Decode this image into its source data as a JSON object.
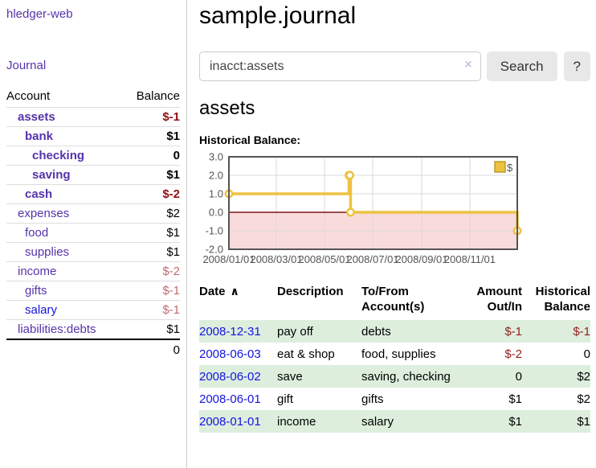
{
  "app": {
    "title": "hledger-web"
  },
  "sidebar": {
    "journal_label": "Journal",
    "accounts_table": {
      "headers": {
        "account": "Account",
        "balance": "Balance"
      },
      "rows": [
        {
          "name": "assets",
          "indent": 1,
          "bold": true,
          "balance": "$-1",
          "neg": "strong"
        },
        {
          "name": "bank",
          "indent": 2,
          "bold": true,
          "balance": "$1"
        },
        {
          "name": "checking",
          "indent": 3,
          "bold": true,
          "balance": "0"
        },
        {
          "name": "saving",
          "indent": 3,
          "bold": true,
          "balance": "$1"
        },
        {
          "name": "cash",
          "indent": 2,
          "bold": true,
          "balance": "$-2",
          "neg": "strong"
        },
        {
          "name": "expenses",
          "indent": 1,
          "balance": "$2"
        },
        {
          "name": "food",
          "indent": 2,
          "balance": "$1"
        },
        {
          "name": "supplies",
          "indent": 2,
          "balance": "$1"
        },
        {
          "name": "income",
          "indent": 1,
          "balance": "$-2",
          "neg": "soft"
        },
        {
          "name": "gifts",
          "indent": 2,
          "balance": "$-1",
          "neg": "soft"
        },
        {
          "name": "salary",
          "indent": 2,
          "blue": true,
          "balance": "$-1",
          "neg": "soft"
        },
        {
          "name": "liabilities:debts",
          "indent": 1,
          "balance": "$1"
        }
      ],
      "total": "0"
    }
  },
  "main": {
    "title": "sample.journal",
    "search": {
      "value": "inacct:assets",
      "clear_icon": "×",
      "button_label": "Search",
      "help_label": "?"
    },
    "account_heading": "assets",
    "chart_label": "Historical Balance:"
  },
  "chart_data": {
    "type": "line",
    "title": "Historical Balance",
    "series": [
      {
        "name": "$",
        "step": true,
        "points": [
          [
            "2008-01-01",
            1
          ],
          [
            "2008-06-01",
            2
          ],
          [
            "2008-06-02",
            2
          ],
          [
            "2008-06-03",
            0
          ],
          [
            "2008-12-31",
            -1
          ]
        ]
      }
    ],
    "x_range": [
      "2008-01-01",
      "2008-12-31"
    ],
    "x_ticks": [
      "2008/01/01",
      "2008/03/01",
      "2008/05/01",
      "2008/07/01",
      "2008/09/01",
      "2008/11/01"
    ],
    "y_ticks": [
      3.0,
      2.0,
      1.0,
      0.0,
      -1.0,
      -2.0
    ],
    "ylim": [
      -2,
      3
    ],
    "negative_fill": true,
    "grid": true,
    "legend": {
      "position": "top-right",
      "label": "$"
    },
    "colors": {
      "line": "#edc240",
      "legend_border": "#bb9a2a",
      "negative_region": "#fadbdb",
      "zero_line": "#7a1818",
      "grid": "#d9d9d9",
      "border": "#545454",
      "axis_text": "#545454"
    }
  },
  "register": {
    "headers": {
      "date": "Date",
      "sort_indicator": "∧",
      "description": "Description",
      "accounts_l1": "To/From",
      "accounts_l2": "Account(s)",
      "amount_l1": "Amount",
      "amount_l2": "Out/In",
      "balance_l1": "Historical",
      "balance_l2": "Balance"
    },
    "rows": [
      {
        "date": "2008-12-31",
        "description": "pay off",
        "accounts": "debts",
        "amount": "$-1",
        "amount_neg": true,
        "balance": "$-1",
        "balance_neg": true
      },
      {
        "date": "2008-06-03",
        "description": "eat & shop",
        "accounts": "food, supplies",
        "amount": "$-2",
        "amount_neg": true,
        "balance": "0",
        "balance_neg": false
      },
      {
        "date": "2008-06-02",
        "description": "save",
        "accounts": "saving, checking",
        "amount": "0",
        "amount_neg": false,
        "balance": "$2",
        "balance_neg": false
      },
      {
        "date": "2008-06-01",
        "description": "gift",
        "accounts": "gifts",
        "amount": "$1",
        "amount_neg": false,
        "balance": "$2",
        "balance_neg": false
      },
      {
        "date": "2008-01-01",
        "description": "income",
        "accounts": "salary",
        "amount": "$1",
        "amount_neg": false,
        "balance": "$1",
        "balance_neg": false
      }
    ]
  }
}
